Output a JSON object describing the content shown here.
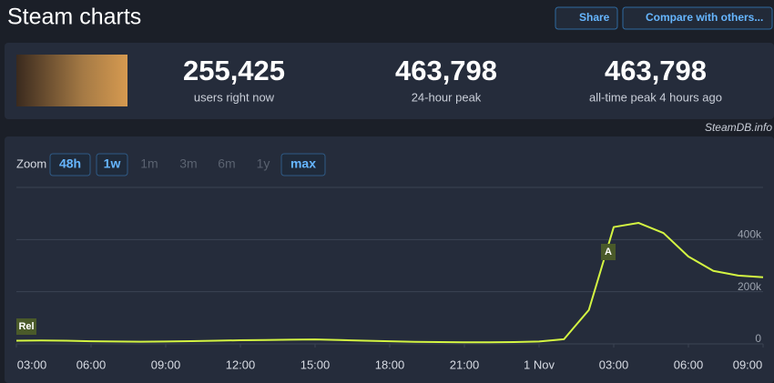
{
  "header": {
    "title": "Steam charts",
    "share": "Share",
    "compare": "Compare with others..."
  },
  "stats": [
    {
      "value": "255,425",
      "label": "users right now"
    },
    {
      "value": "463,798",
      "label": "24-hour peak"
    },
    {
      "value": "463,798",
      "label": "all-time peak 4 hours ago"
    }
  ],
  "source": "SteamDB.info",
  "zoom": {
    "label": "Zoom",
    "options": [
      "48h",
      "1w",
      "1m",
      "3m",
      "6m",
      "1y",
      "max"
    ],
    "active": [
      true,
      true,
      false,
      false,
      false,
      false,
      true
    ]
  },
  "chart_data": {
    "type": "line",
    "color": "#d4f542",
    "x": [
      3,
      4,
      5,
      6,
      7,
      8,
      9,
      10,
      11,
      12,
      13,
      14,
      15,
      16,
      17,
      18,
      19,
      20,
      21,
      22,
      23,
      24,
      25,
      26,
      27,
      28,
      29,
      30,
      31,
      32,
      33
    ],
    "values": [
      12000,
      13000,
      12000,
      10000,
      9000,
      8500,
      9000,
      10500,
      12000,
      14000,
      15000,
      16000,
      17000,
      15000,
      12000,
      10000,
      8000,
      7000,
      6000,
      6000,
      7000,
      9000,
      18000,
      130000,
      448000,
      463798,
      425000,
      335000,
      280000,
      262000,
      255425
    ],
    "xlim": [
      3,
      33
    ],
    "xticks": [
      {
        "value": 3,
        "label": "03:00"
      },
      {
        "value": 6,
        "label": "06:00"
      },
      {
        "value": 9,
        "label": "09:00"
      },
      {
        "value": 12,
        "label": "12:00"
      },
      {
        "value": 15,
        "label": "15:00"
      },
      {
        "value": 18,
        "label": "18:00"
      },
      {
        "value": 21,
        "label": "21:00"
      },
      {
        "value": 24,
        "label": "1 Nov"
      },
      {
        "value": 27,
        "label": "03:00"
      },
      {
        "value": 30,
        "label": "06:00"
      },
      {
        "value": 33,
        "label": "09:00"
      }
    ],
    "ylim": [
      0,
      600000
    ],
    "yticks": [
      0,
      {
        "value": 200000,
        "label": "200k"
      },
      {
        "value": 400000,
        "label": "400k"
      }
    ],
    "grid": true,
    "annotations": [
      "Rel",
      "A"
    ]
  }
}
